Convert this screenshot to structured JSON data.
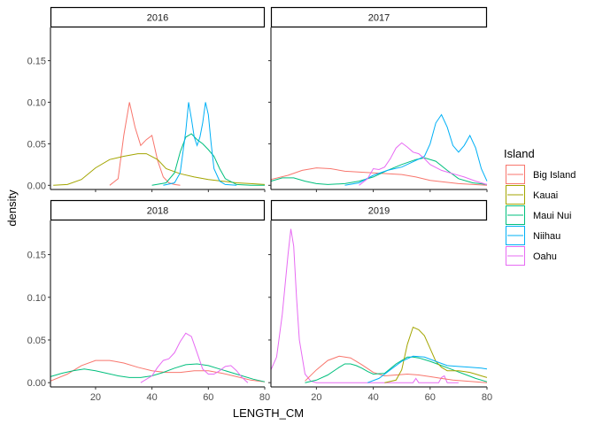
{
  "chart_data": {
    "type": "line",
    "xlabel": "LENGTH_CM",
    "ylabel": "density",
    "xlim": [
      4,
      80
    ],
    "ylim": [
      -0.005,
      0.19
    ],
    "x_ticks": [
      20,
      40,
      60,
      80
    ],
    "y_ticks": [
      0.0,
      0.05,
      0.1,
      0.15
    ],
    "y_tick_labels": [
      "0.00",
      "0.05",
      "0.10",
      "0.15"
    ],
    "grid": false,
    "legend": {
      "title": "Island",
      "placement": "right",
      "entries": [
        "Big Island",
        "Kauai",
        "Maui Nui",
        "Niihau",
        "Oahu"
      ]
    },
    "colors": {
      "Big Island": "#F8766D",
      "Kauai": "#A3A500",
      "Maui Nui": "#00BF7D",
      "Niihau": "#00B0F6",
      "Oahu": "#E76BF3"
    },
    "panels": [
      {
        "label": "2016",
        "series": [
          {
            "name": "Big Island",
            "x": [
              25,
              28,
              30,
              32,
              34,
              36,
              38,
              40,
              42,
              44,
              46,
              48,
              50
            ],
            "y": [
              0.0,
              0.008,
              0.06,
              0.1,
              0.07,
              0.048,
              0.055,
              0.06,
              0.03,
              0.01,
              0.003,
              0.001,
              0.0
            ]
          },
          {
            "name": "Kauai",
            "x": [
              5,
              10,
              15,
              20,
              25,
              30,
              35,
              38,
              42,
              45,
              50,
              55,
              60,
              65,
              70,
              75,
              80
            ],
            "y": [
              0.0,
              0.001,
              0.007,
              0.021,
              0.031,
              0.035,
              0.038,
              0.038,
              0.031,
              0.02,
              0.014,
              0.01,
              0.007,
              0.005,
              0.003,
              0.002,
              0.001
            ]
          },
          {
            "name": "Maui Nui",
            "x": [
              40,
              45,
              48,
              50,
              52,
              54,
              56,
              58,
              60,
              62,
              64,
              66,
              70,
              75,
              80
            ],
            "y": [
              0.0,
              0.003,
              0.015,
              0.04,
              0.058,
              0.062,
              0.055,
              0.05,
              0.043,
              0.035,
              0.02,
              0.008,
              0.001,
              0.0,
              0.0
            ]
          },
          {
            "name": "Niihau",
            "x": [
              44,
              48,
              50,
              52,
              53,
              54,
              55,
              56,
              57,
              58,
              59,
              60,
              61,
              62,
              64,
              66,
              70
            ],
            "y": [
              0.0,
              0.003,
              0.015,
              0.065,
              0.1,
              0.08,
              0.058,
              0.048,
              0.058,
              0.075,
              0.1,
              0.085,
              0.05,
              0.02,
              0.005,
              0.001,
              0.0
            ]
          }
        ]
      },
      {
        "label": "2017",
        "series": [
          {
            "name": "Big Island",
            "x": [
              4,
              10,
              15,
              20,
              25,
              30,
              40,
              50,
              55,
              60,
              70,
              80
            ],
            "y": [
              0.007,
              0.012,
              0.018,
              0.021,
              0.02,
              0.017,
              0.015,
              0.013,
              0.01,
              0.006,
              0.002,
              0.0
            ]
          },
          {
            "name": "Maui Nui",
            "x": [
              4,
              8,
              12,
              16,
              20,
              24,
              30,
              35,
              40,
              45,
              50,
              55,
              58,
              62,
              66,
              70,
              75,
              80
            ],
            "y": [
              0.005,
              0.009,
              0.009,
              0.005,
              0.002,
              0.001,
              0.002,
              0.005,
              0.01,
              0.018,
              0.025,
              0.031,
              0.033,
              0.029,
              0.018,
              0.008,
              0.003,
              0.001
            ]
          },
          {
            "name": "Niihau",
            "x": [
              30,
              35,
              40,
              45,
              50,
              55,
              58,
              60,
              62,
              64,
              66,
              68,
              70,
              72,
              74,
              76,
              78,
              80
            ],
            "y": [
              0.0,
              0.003,
              0.012,
              0.018,
              0.022,
              0.03,
              0.035,
              0.05,
              0.075,
              0.085,
              0.07,
              0.048,
              0.04,
              0.048,
              0.06,
              0.045,
              0.02,
              0.005
            ]
          },
          {
            "name": "Oahu",
            "x": [
              35,
              38,
              40,
              42,
              44,
              46,
              48,
              50,
              52,
              54,
              56,
              58,
              60,
              64,
              68,
              72,
              76,
              80
            ],
            "y": [
              0.0,
              0.008,
              0.02,
              0.019,
              0.022,
              0.032,
              0.045,
              0.051,
              0.046,
              0.04,
              0.038,
              0.032,
              0.025,
              0.018,
              0.014,
              0.01,
              0.005,
              0.001
            ]
          }
        ]
      },
      {
        "label": "2018",
        "series": [
          {
            "name": "Big Island",
            "x": [
              4,
              10,
              15,
              20,
              25,
              30,
              35,
              40,
              45,
              50,
              55,
              60,
              65,
              70,
              75,
              80
            ],
            "y": [
              0.002,
              0.01,
              0.02,
              0.026,
              0.026,
              0.023,
              0.018,
              0.014,
              0.012,
              0.012,
              0.014,
              0.014,
              0.011,
              0.007,
              0.003,
              0.001
            ]
          },
          {
            "name": "Maui Nui",
            "x": [
              4,
              8,
              12,
              16,
              20,
              24,
              28,
              32,
              36,
              40,
              44,
              48,
              52,
              56,
              60,
              64,
              68,
              72,
              76,
              80
            ],
            "y": [
              0.007,
              0.011,
              0.014,
              0.016,
              0.014,
              0.011,
              0.008,
              0.006,
              0.006,
              0.008,
              0.012,
              0.017,
              0.021,
              0.022,
              0.02,
              0.016,
              0.012,
              0.008,
              0.004,
              0.001
            ]
          },
          {
            "name": "Oahu",
            "x": [
              36,
              40,
              42,
              44,
              46,
              48,
              50,
              52,
              54,
              56,
              58,
              60,
              62,
              64,
              66,
              68,
              70,
              72,
              74
            ],
            "y": [
              0.0,
              0.008,
              0.018,
              0.026,
              0.028,
              0.035,
              0.048,
              0.058,
              0.054,
              0.035,
              0.016,
              0.01,
              0.01,
              0.014,
              0.019,
              0.02,
              0.014,
              0.006,
              0.0
            ]
          }
        ]
      },
      {
        "label": "2019",
        "series": [
          {
            "name": "Oahu",
            "x": [
              4,
              6,
              8,
              10,
              11,
              12,
              13,
              14,
              16,
              18,
              20,
              30,
              40,
              50,
              54,
              55,
              56,
              60,
              63,
              64,
              65,
              66,
              70
            ],
            "y": [
              0.015,
              0.03,
              0.08,
              0.15,
              0.18,
              0.16,
              0.1,
              0.05,
              0.01,
              0.002,
              0.0,
              0.0,
              0.0,
              0.0,
              0.0,
              0.005,
              0.0,
              0.0,
              0.0,
              0.006,
              0.008,
              0.0,
              0.0
            ]
          },
          {
            "name": "Big Island",
            "x": [
              16,
              20,
              24,
              28,
              32,
              36,
              40,
              44,
              48,
              52,
              56,
              60,
              64,
              68,
              72,
              76,
              80
            ],
            "y": [
              0.002,
              0.015,
              0.026,
              0.031,
              0.029,
              0.021,
              0.012,
              0.008,
              0.009,
              0.01,
              0.009,
              0.007,
              0.005,
              0.003,
              0.002,
              0.001,
              0.0
            ]
          },
          {
            "name": "Maui Nui",
            "x": [
              16,
              20,
              24,
              28,
              30,
              32,
              34,
              36,
              38,
              40,
              44,
              48,
              52,
              54,
              56,
              58,
              60,
              64,
              68,
              72,
              76,
              80
            ],
            "y": [
              0.0,
              0.003,
              0.009,
              0.018,
              0.022,
              0.022,
              0.02,
              0.017,
              0.013,
              0.01,
              0.011,
              0.022,
              0.03,
              0.03,
              0.029,
              0.027,
              0.025,
              0.02,
              0.015,
              0.01,
              0.005,
              0.001
            ]
          },
          {
            "name": "Kauai",
            "x": [
              44,
              48,
              50,
              52,
              54,
              56,
              58,
              60,
              62,
              64,
              66,
              68,
              70,
              72,
              74,
              76,
              78,
              80
            ],
            "y": [
              0.0,
              0.003,
              0.015,
              0.045,
              0.065,
              0.062,
              0.055,
              0.04,
              0.025,
              0.018,
              0.014,
              0.014,
              0.014,
              0.013,
              0.012,
              0.01,
              0.008,
              0.006
            ]
          },
          {
            "name": "Niihau",
            "x": [
              38,
              42,
              46,
              50,
              54,
              58,
              62,
              66,
              70,
              74,
              78,
              80
            ],
            "y": [
              0.0,
              0.005,
              0.015,
              0.025,
              0.031,
              0.03,
              0.025,
              0.02,
              0.019,
              0.018,
              0.017,
              0.016
            ]
          }
        ]
      }
    ]
  }
}
